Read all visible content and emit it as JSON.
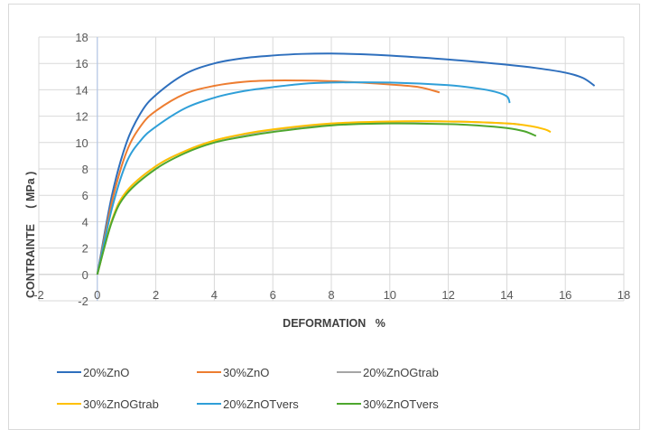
{
  "chart_data": {
    "type": "line",
    "title": "",
    "xlabel": "DEFORMATION   %",
    "ylabel": "CONTRAINTE     ( MPa )",
    "xlim": [
      -2,
      18
    ],
    "ylim": [
      -2,
      18
    ],
    "xticks": [
      -2,
      0,
      2,
      4,
      6,
      8,
      10,
      12,
      14,
      16,
      18
    ],
    "yticks": [
      -2,
      0,
      2,
      4,
      6,
      8,
      10,
      12,
      14,
      16,
      18
    ],
    "grid": true,
    "legend_position": "bottom",
    "series": [
      {
        "name": "20%ZnO",
        "color": "#2e6fbd",
        "x": [
          0,
          0.5,
          1,
          1.5,
          2,
          3,
          4,
          5,
          6,
          7,
          8,
          9,
          10,
          12,
          14,
          15,
          16,
          16.6,
          17
        ],
        "y": [
          0,
          6,
          10,
          12.3,
          13.6,
          15.2,
          16,
          16.4,
          16.6,
          16.72,
          16.75,
          16.7,
          16.6,
          16.3,
          15.9,
          15.65,
          15.3,
          14.9,
          14.3
        ]
      },
      {
        "name": "30%ZnO",
        "color": "#ed7d31",
        "x": [
          0,
          0.5,
          1,
          1.5,
          2,
          3,
          4,
          5,
          6,
          7,
          8,
          9,
          10,
          11,
          11.7
        ],
        "y": [
          0,
          5.5,
          9.3,
          11.3,
          12.4,
          13.7,
          14.3,
          14.6,
          14.7,
          14.7,
          14.65,
          14.55,
          14.4,
          14.2,
          13.8
        ]
      },
      {
        "name": "20%ZnOGtrab",
        "color": "#a5a5a5",
        "x": [
          0,
          0.5,
          1,
          2,
          3,
          4,
          5,
          6,
          8,
          10,
          12,
          14,
          14.5
        ],
        "y": [
          0,
          4.1,
          6.3,
          8.2,
          9.35,
          10.15,
          10.6,
          10.95,
          11.4,
          11.55,
          11.6,
          11.45,
          11.35
        ]
      },
      {
        "name": "30%ZnOGtrab",
        "color": "#ffc000",
        "x": [
          0,
          0.5,
          1,
          2,
          3,
          4,
          5,
          6,
          8,
          10,
          12,
          14,
          14.8,
          15.3,
          15.5
        ],
        "y": [
          0,
          4.1,
          6.3,
          8.2,
          9.35,
          10.15,
          10.65,
          11,
          11.45,
          11.6,
          11.6,
          11.45,
          11.25,
          11,
          10.8
        ]
      },
      {
        "name": "20%ZnOTvers",
        "color": "#2f9fd8",
        "x": [
          0,
          0.5,
          1,
          1.5,
          2,
          3,
          4,
          5,
          6,
          7,
          8,
          10,
          12,
          13,
          13.6,
          14,
          14.1
        ],
        "y": [
          0,
          5,
          8.5,
          10.2,
          11.2,
          12.6,
          13.4,
          13.9,
          14.2,
          14.45,
          14.55,
          14.55,
          14.35,
          14.1,
          13.85,
          13.5,
          13
        ]
      },
      {
        "name": "30%ZnOTvers",
        "color": "#4ea72e",
        "x": [
          0,
          0.5,
          1,
          2,
          3,
          4,
          5,
          6,
          8,
          10,
          12,
          13,
          14,
          14.6,
          15
        ],
        "y": [
          0,
          4,
          6.1,
          8,
          9.2,
          10,
          10.45,
          10.8,
          11.3,
          11.45,
          11.4,
          11.3,
          11.1,
          10.85,
          10.5
        ]
      }
    ]
  }
}
